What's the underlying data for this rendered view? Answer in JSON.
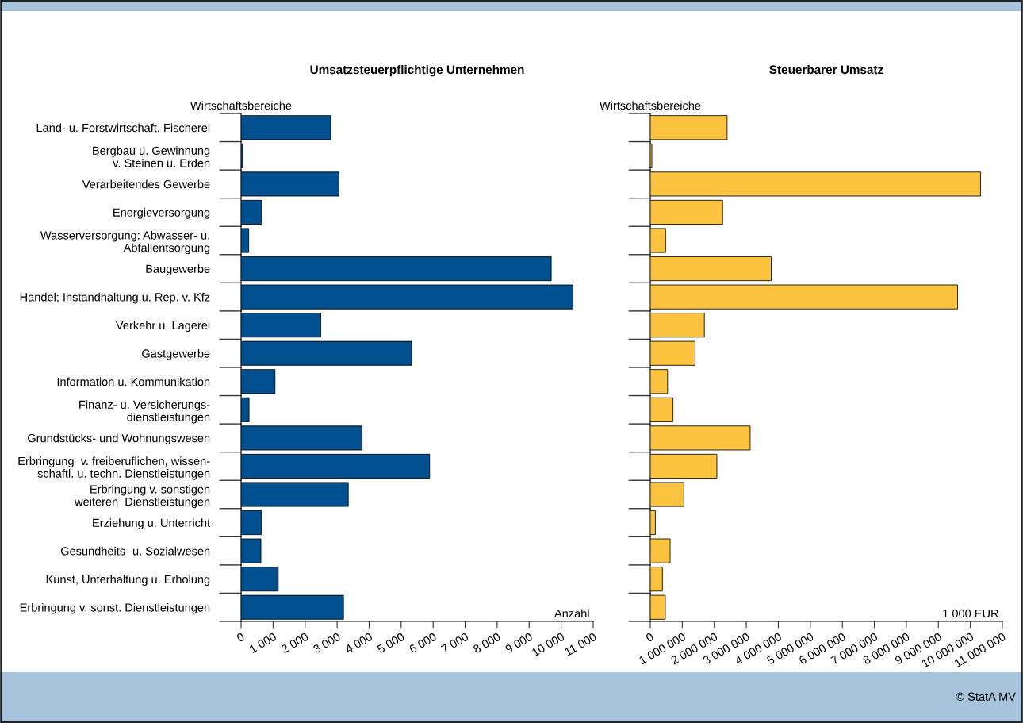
{
  "chart_data": [
    {
      "type": "bar",
      "orientation": "horizontal",
      "title": "Umsatzsteuerpflichtige Unternehmen",
      "ylabel": "Wirtschaftsbereiche",
      "xlabel": "Anzahl",
      "categories": [
        "Land- u. Forstwirtschaft, Fischerei",
        "Bergbau u. Gewinnung\nv. Steinen u. Erden",
        "Verarbeitendes Gewerbe",
        "Energieversorgung",
        "Wasserversorgung; Abwasser- u.\nAbfallentsorgung",
        "Baugewerbe",
        "Handel; Instandhaltung u. Rep. v. Kfz",
        "Verkehr u. Lagerei",
        "Gastgewerbe",
        "Information u. Kommunikation",
        "Finanz- u. Versicherungs-\ndienstleistungen",
        "Grundstücks- und Wohnungswesen",
        "Erbringung  v. freiberuflichen, wissen-\nschaftl. u. techn. Dienstleistungen",
        "Erbringung v. sonstigen\nweiteren  Dienstleistungen",
        "Erziehung u. Unterricht",
        "Gesundheits- u. Sozialwesen",
        "Kunst, Unterhaltung u. Erholung",
        "Erbringung v. sonst. Dienstleistungen"
      ],
      "values": [
        2800,
        50,
        3060,
        640,
        240,
        9690,
        10370,
        2490,
        5330,
        1060,
        250,
        3780,
        5890,
        3350,
        640,
        620,
        1160,
        3200
      ],
      "color": "#00508f",
      "xlim": [
        0,
        11000
      ],
      "xticks": [
        0,
        {
          "value": 1000,
          "label": "1 000"
        },
        {
          "value": 2000,
          "label": "2 000"
        },
        {
          "value": 3000,
          "label": "3 000"
        },
        {
          "value": 4000,
          "label": "4 000"
        },
        {
          "value": 5000,
          "label": "5 000"
        },
        {
          "value": 6000,
          "label": "6 000"
        },
        {
          "value": 7000,
          "label": "7 000"
        },
        {
          "value": 8000,
          "label": "8 000"
        },
        {
          "value": 9000,
          "label": "9 000"
        },
        {
          "value": 10000,
          "label": "10 000"
        },
        {
          "value": 11000,
          "label": "11 000"
        }
      ],
      "grid": false,
      "annotations": [
        "© StatA MV"
      ]
    },
    {
      "type": "bar",
      "orientation": "horizontal",
      "title": "Steuerbarer Umsatz",
      "ylabel": "Wirtschaftsbereiche",
      "xlabel": "1 000 EUR",
      "categories": [
        null,
        null,
        null,
        null,
        null,
        null,
        null,
        null,
        null,
        null,
        null,
        null,
        null,
        null,
        null,
        null,
        null,
        null
      ],
      "values": [
        2400000,
        50000,
        10320000,
        2260000,
        480000,
        3780000,
        9600000,
        1690000,
        1400000,
        540000,
        710000,
        3120000,
        2080000,
        1050000,
        160000,
        620000,
        380000,
        470000
      ],
      "color": "#fbc33f",
      "xlim": [
        0,
        11000000
      ],
      "xticks": [
        0,
        {
          "value": 1000000,
          "label": "1 000 000"
        },
        {
          "value": 2000000,
          "label": "2 000 000"
        },
        {
          "value": 3000000,
          "label": "3 000 000"
        },
        {
          "value": 4000000,
          "label": "4 000 000"
        },
        {
          "value": 5000000,
          "label": "5 000 000"
        },
        {
          "value": 6000000,
          "label": "6 000 000"
        },
        {
          "value": 7000000,
          "label": "7 000 000"
        },
        {
          "value": 8000000,
          "label": "8 000 000"
        },
        {
          "value": 9000000,
          "label": "9 000 000"
        },
        {
          "value": 10000000,
          "label": "10 000 000"
        },
        {
          "value": 11000000,
          "label": "11 000 000"
        }
      ],
      "grid": false
    }
  ]
}
